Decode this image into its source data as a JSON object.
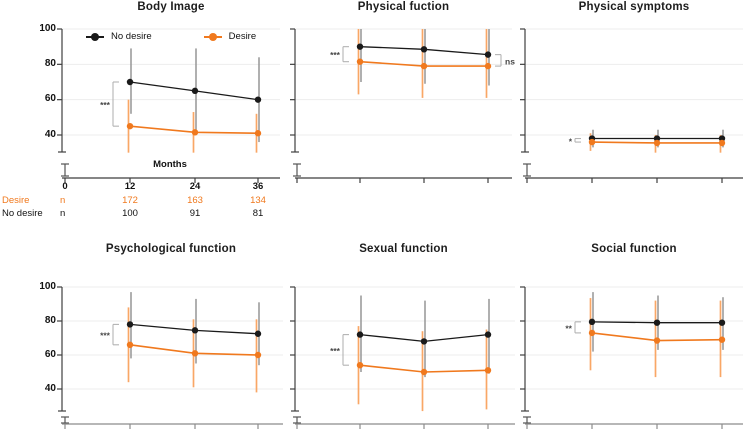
{
  "figure": {
    "legend": {
      "items": [
        {
          "label": "No desire",
          "color": "#1a1a1a"
        },
        {
          "label": "Desire",
          "color": "#f0791e"
        }
      ]
    },
    "colors": {
      "no_desire": "#1a1a1a",
      "desire": "#f0791e",
      "no_desire_error": "#8f8f8f",
      "desire_error": "#f9a766",
      "grid": "#ededed",
      "axis": "#3f3f3f",
      "bottom_axis": "#8c8c8c",
      "bracket": "#b3b3b3"
    },
    "xaxis": {
      "label": "Months",
      "ticks": [
        "0",
        "12",
        "24",
        "36"
      ]
    },
    "yaxis": {
      "ticks": [
        "100",
        "80",
        "60",
        "40"
      ]
    }
  },
  "counts_table": {
    "rows": [
      {
        "label": "Desire",
        "unit": "n",
        "values": [
          "172",
          "163",
          "134"
        ]
      },
      {
        "label": "No desire",
        "unit": "n",
        "values": [
          "100",
          "91",
          "81"
        ]
      }
    ]
  },
  "chart_data": [
    {
      "type": "line",
      "title": "Body Image",
      "xlabel": "Months",
      "x": [
        12,
        24,
        36
      ],
      "ylim": [
        30,
        100
      ],
      "yticks": [
        100,
        80,
        60,
        40
      ],
      "grid": true,
      "legend_position": "top-inside",
      "series": [
        {
          "name": "No desire",
          "color": "#1a1a1a",
          "err_color": "#8f8f8f",
          "values": [
            70,
            65,
            60
          ],
          "err_low": [
            52,
            42,
            36
          ],
          "err_high": [
            89,
            89,
            84
          ]
        },
        {
          "name": "Desire",
          "color": "#f0791e",
          "err_color": "#f9a766",
          "values": [
            45,
            41.5,
            41
          ],
          "err_low": [
            30,
            30,
            30
          ],
          "err_high": [
            60,
            53,
            52
          ]
        }
      ],
      "annotations": [
        {
          "type": "bracket",
          "side": "left",
          "at_x": 12,
          "label": "***"
        }
      ]
    },
    {
      "type": "line",
      "title": "Physical fuction",
      "x": [
        12,
        24,
        36
      ],
      "ylim": [
        30,
        100
      ],
      "yticks": [
        100,
        80,
        60,
        40
      ],
      "grid": true,
      "series": [
        {
          "name": "No desire",
          "color": "#1a1a1a",
          "err_color": "#8f8f8f",
          "values": [
            90,
            88.5,
            85.5
          ],
          "err_low": [
            70,
            69,
            68
          ],
          "err_high": [
            100,
            100,
            100
          ]
        },
        {
          "name": "Desire",
          "color": "#f0791e",
          "err_color": "#f9a766",
          "values": [
            81.5,
            79,
            79
          ],
          "err_low": [
            63,
            61,
            61
          ],
          "err_high": [
            100,
            100,
            100
          ]
        }
      ],
      "annotations": [
        {
          "type": "bracket",
          "side": "left",
          "at_x": 12,
          "label": "***"
        },
        {
          "type": "bracket",
          "side": "right",
          "at_x": 36,
          "label": "ns"
        }
      ]
    },
    {
      "type": "line",
      "title": "Physical symptoms",
      "x": [
        12,
        24,
        36
      ],
      "ylim": [
        30,
        100
      ],
      "yticks": [
        100,
        80,
        60,
        40
      ],
      "grid": true,
      "series": [
        {
          "name": "No desire",
          "color": "#1a1a1a",
          "err_color": "#8f8f8f",
          "values": [
            38,
            38,
            38
          ],
          "err_low": [
            33,
            33,
            33
          ],
          "err_high": [
            43,
            43,
            43
          ]
        },
        {
          "name": "Desire",
          "color": "#f0791e",
          "err_color": "#f9a766",
          "values": [
            36,
            35.5,
            35.5
          ],
          "err_low": [
            31,
            30,
            30
          ],
          "err_high": [
            41,
            40,
            40
          ]
        }
      ],
      "annotations": [
        {
          "type": "bracket",
          "side": "left",
          "at_x": 12,
          "label": "*"
        }
      ]
    },
    {
      "type": "line",
      "title": "Psychological function",
      "x": [
        12,
        24,
        36
      ],
      "ylim": [
        30,
        100
      ],
      "yticks": [
        100,
        80,
        60,
        40
      ],
      "grid": true,
      "series": [
        {
          "name": "No desire",
          "color": "#1a1a1a",
          "err_color": "#8f8f8f",
          "values": [
            78,
            74.5,
            72.5
          ],
          "err_low": [
            58,
            55,
            54
          ],
          "err_high": [
            97,
            93,
            91
          ]
        },
        {
          "name": "Desire",
          "color": "#f0791e",
          "err_color": "#f9a766",
          "values": [
            66,
            61,
            60
          ],
          "err_low": [
            44,
            41,
            38
          ],
          "err_high": [
            88,
            81,
            81
          ]
        }
      ],
      "annotations": [
        {
          "type": "bracket",
          "side": "left",
          "at_x": 12,
          "label": "***"
        }
      ]
    },
    {
      "type": "line",
      "title": "Sexual function",
      "x": [
        12,
        24,
        36
      ],
      "ylim": [
        30,
        100
      ],
      "yticks": [
        100,
        80,
        60,
        40
      ],
      "grid": true,
      "series": [
        {
          "name": "No desire",
          "color": "#1a1a1a",
          "err_color": "#8f8f8f",
          "values": [
            72,
            68,
            72
          ],
          "err_low": [
            50,
            47,
            49
          ],
          "err_high": [
            95,
            92,
            93
          ]
        },
        {
          "name": "Desire",
          "color": "#f0791e",
          "err_color": "#f9a766",
          "values": [
            54,
            50,
            51
          ],
          "err_low": [
            31,
            27,
            28
          ],
          "err_high": [
            77,
            74,
            75
          ]
        }
      ],
      "annotations": [
        {
          "type": "bracket",
          "side": "left",
          "at_x": 12,
          "label": "***"
        }
      ]
    },
    {
      "type": "line",
      "title": "Social function",
      "x": [
        12,
        24,
        36
      ],
      "ylim": [
        30,
        100
      ],
      "yticks": [
        100,
        80,
        60,
        40
      ],
      "grid": true,
      "series": [
        {
          "name": "No desire",
          "color": "#1a1a1a",
          "err_color": "#8f8f8f",
          "values": [
            79.5,
            79,
            79
          ],
          "err_low": [
            62,
            63,
            63
          ],
          "err_high": [
            97,
            95,
            94
          ]
        },
        {
          "name": "Desire",
          "color": "#f0791e",
          "err_color": "#f9a766",
          "values": [
            73,
            68.5,
            69
          ],
          "err_low": [
            51,
            47,
            47
          ],
          "err_high": [
            93.5,
            92,
            92
          ]
        }
      ],
      "annotations": [
        {
          "type": "bracket",
          "side": "left",
          "at_x": 12,
          "label": "**"
        }
      ]
    }
  ]
}
